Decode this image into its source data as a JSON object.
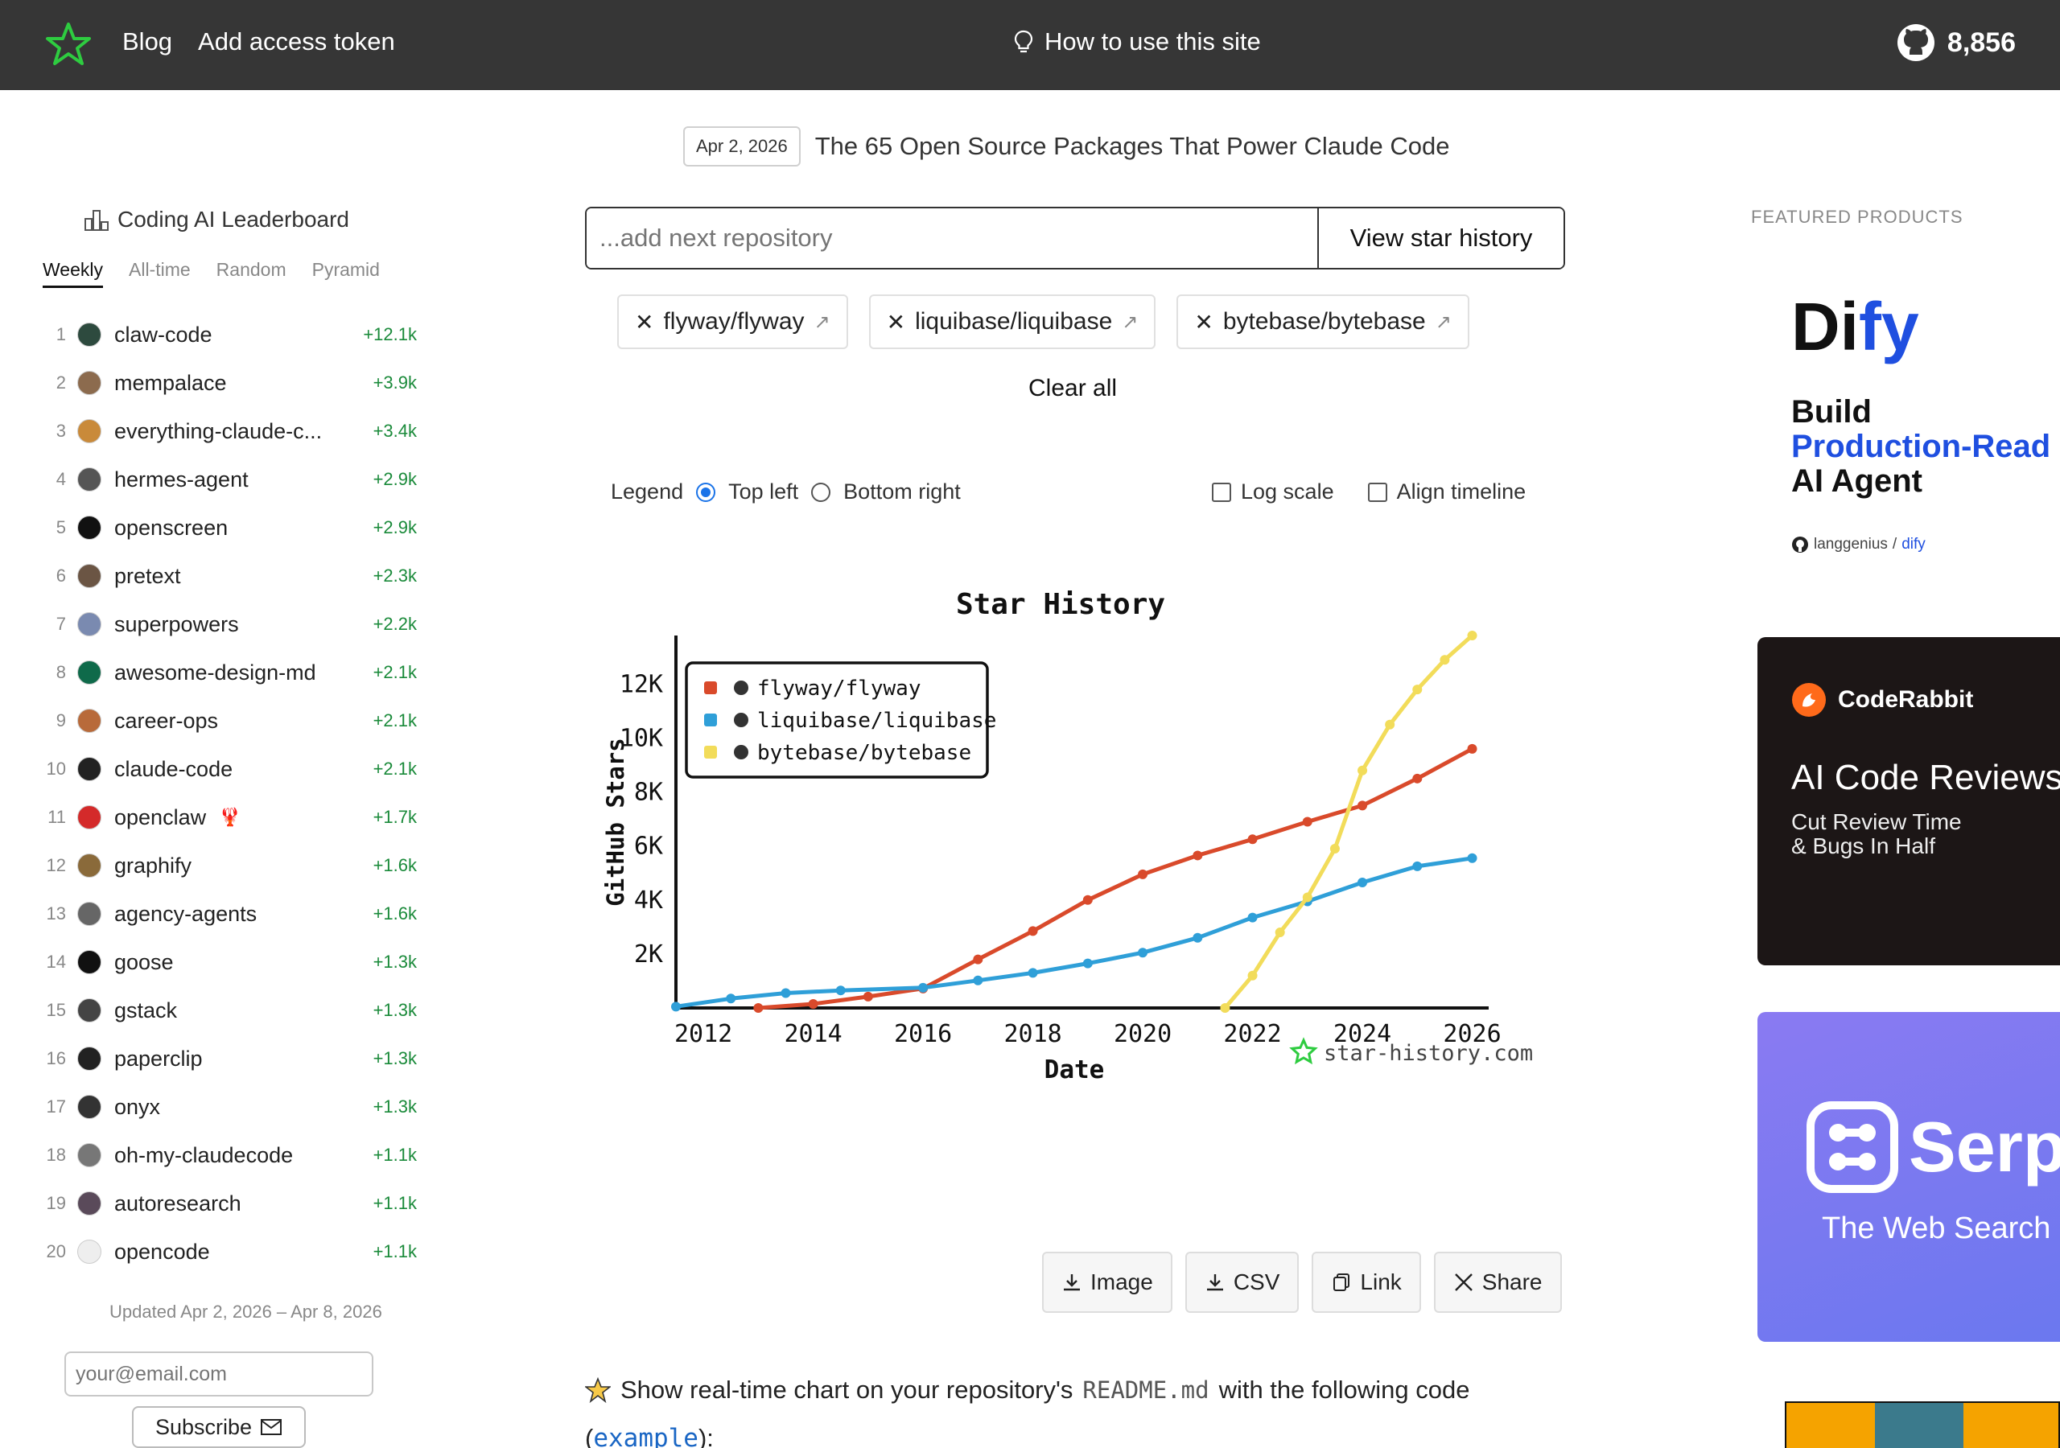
{
  "header": {
    "nav": [
      "Blog",
      "Add access token"
    ],
    "howto": "How to use this site",
    "stars": "8,856"
  },
  "announcement": {
    "date": "Apr 2, 2026",
    "title": "The 65 Open Source Packages That Power Claude Code"
  },
  "leaderboard": {
    "title": "Coding AI Leaderboard",
    "tabs": [
      "Weekly",
      "All-time",
      "Random",
      "Pyramid"
    ],
    "active_tab": "Weekly",
    "items": [
      {
        "rank": "1",
        "name": "claw-code",
        "delta": "+12.1k",
        "color": "#2d4a3e"
      },
      {
        "rank": "2",
        "name": "mempalace",
        "delta": "+3.9k",
        "color": "#8c6b4e"
      },
      {
        "rank": "3",
        "name": "everything-claude-c...",
        "delta": "+3.4k",
        "color": "#c98a3a"
      },
      {
        "rank": "4",
        "name": "hermes-agent",
        "delta": "+2.9k",
        "color": "#555555"
      },
      {
        "rank": "5",
        "name": "openscreen",
        "delta": "+2.9k",
        "color": "#111111"
      },
      {
        "rank": "6",
        "name": "pretext",
        "delta": "+2.3k",
        "color": "#6b5544"
      },
      {
        "rank": "7",
        "name": "superpowers",
        "delta": "+2.2k",
        "color": "#7a8ab0"
      },
      {
        "rank": "8",
        "name": "awesome-design-md",
        "delta": "+2.1k",
        "color": "#0f6a4a"
      },
      {
        "rank": "9",
        "name": "career-ops",
        "delta": "+2.1k",
        "color": "#b86a3a"
      },
      {
        "rank": "10",
        "name": "claude-code",
        "delta": "+2.1k",
        "color": "#222222"
      },
      {
        "rank": "11",
        "name": "openclaw",
        "delta": "+1.7k",
        "color": "#d42a2a",
        "extra": "🦞"
      },
      {
        "rank": "12",
        "name": "graphify",
        "delta": "+1.6k",
        "color": "#8a6a3a"
      },
      {
        "rank": "13",
        "name": "agency-agents",
        "delta": "+1.6k",
        "color": "#666666"
      },
      {
        "rank": "14",
        "name": "goose",
        "delta": "+1.3k",
        "color": "#111111"
      },
      {
        "rank": "15",
        "name": "gstack",
        "delta": "+1.3k",
        "color": "#444444"
      },
      {
        "rank": "16",
        "name": "paperclip",
        "delta": "+1.3k",
        "color": "#222222"
      },
      {
        "rank": "17",
        "name": "onyx",
        "delta": "+1.3k",
        "color": "#333333"
      },
      {
        "rank": "18",
        "name": "oh-my-claudecode",
        "delta": "+1.1k",
        "color": "#777777"
      },
      {
        "rank": "19",
        "name": "autoresearch",
        "delta": "+1.1k",
        "color": "#5a4a5a"
      },
      {
        "rank": "20",
        "name": "opencode",
        "delta": "+1.1k",
        "color": "#eeeeee"
      }
    ],
    "updated": "Updated Apr 2, 2026 – Apr 8, 2026",
    "email_placeholder": "your@email.com",
    "subscribe": "Subscribe"
  },
  "search": {
    "placeholder": "...add next repository",
    "button": "View star history"
  },
  "repos": [
    "flyway/flyway",
    "liquibase/liquibase",
    "bytebase/bytebase"
  ],
  "clear_all": "Clear all",
  "options": {
    "legend_label": "Legend",
    "legend_options": [
      "Top left",
      "Bottom right"
    ],
    "legend_selected": "Top left",
    "log_scale": "Log scale",
    "log_scale_checked": false,
    "align_timeline": "Align timeline",
    "align_timeline_checked": false
  },
  "chart_data": {
    "type": "line",
    "title": "Star History",
    "xlabel": "Date",
    "ylabel": "GitHub Stars",
    "x_ticks": [
      "2012",
      "2014",
      "2016",
      "2018",
      "2020",
      "2022",
      "2024",
      "2026"
    ],
    "y_ticks": [
      "2K",
      "4K",
      "6K",
      "8K",
      "10K",
      "12K"
    ],
    "xlim": [
      2011.5,
      2026.3
    ],
    "ylim": [
      0,
      13800
    ],
    "legend_position": "top-left",
    "watermark": "star-history.com",
    "series": [
      {
        "name": "flyway/flyway",
        "color": "#d94a2b",
        "points": [
          [
            2013.0,
            0
          ],
          [
            2014.0,
            150
          ],
          [
            2015.0,
            420
          ],
          [
            2016.0,
            720
          ],
          [
            2017.0,
            1800
          ],
          [
            2018.0,
            2850
          ],
          [
            2019.0,
            4000
          ],
          [
            2020.0,
            4950
          ],
          [
            2021.0,
            5650
          ],
          [
            2022.0,
            6250
          ],
          [
            2023.0,
            6900
          ],
          [
            2024.0,
            7500
          ],
          [
            2025.0,
            8500
          ],
          [
            2026.0,
            9600
          ]
        ]
      },
      {
        "name": "liquibase/liquibase",
        "color": "#2f9fd8",
        "points": [
          [
            2011.5,
            50
          ],
          [
            2012.5,
            350
          ],
          [
            2013.5,
            550
          ],
          [
            2014.5,
            650
          ],
          [
            2016.0,
            750
          ],
          [
            2017.0,
            1020
          ],
          [
            2018.0,
            1300
          ],
          [
            2019.0,
            1650
          ],
          [
            2020.0,
            2050
          ],
          [
            2021.0,
            2600
          ],
          [
            2022.0,
            3350
          ],
          [
            2023.0,
            3950
          ],
          [
            2024.0,
            4650
          ],
          [
            2025.0,
            5250
          ],
          [
            2026.0,
            5550
          ]
        ]
      },
      {
        "name": "bytebase/bytebase",
        "color": "#f2dc5a",
        "points": [
          [
            2021.5,
            0
          ],
          [
            2022.0,
            1200
          ],
          [
            2022.5,
            2800
          ],
          [
            2023.0,
            4100
          ],
          [
            2023.5,
            5900
          ],
          [
            2024.0,
            8800
          ],
          [
            2024.5,
            10500
          ],
          [
            2025.0,
            11800
          ],
          [
            2025.5,
            12900
          ],
          [
            2026.0,
            13800
          ]
        ]
      }
    ]
  },
  "exports": [
    "Image",
    "CSV",
    "Link",
    "Share"
  ],
  "readme": {
    "prefix": "Show real-time chart on your repository's",
    "code": "README.md",
    "suffix": "with the following code",
    "example_open": "(",
    "example_link": "example",
    "example_close": "):"
  },
  "featured": {
    "label": "FEATURED PRODUCTS",
    "dify": {
      "logo_a": "Di",
      "logo_b": "fy",
      "line1": "Build",
      "line2": "Production-Read",
      "line3": "AI Agent",
      "repo_owner": "langgenius",
      "repo_name": "dify"
    },
    "coderabbit": {
      "brand": "CodeRabbit",
      "headline": "AI Code Reviews",
      "sub1": "Cut Review Time",
      "sub2": "& Bugs In Half"
    },
    "serp": {
      "brand": "SerpA",
      "sub": "The Web Search"
    }
  }
}
